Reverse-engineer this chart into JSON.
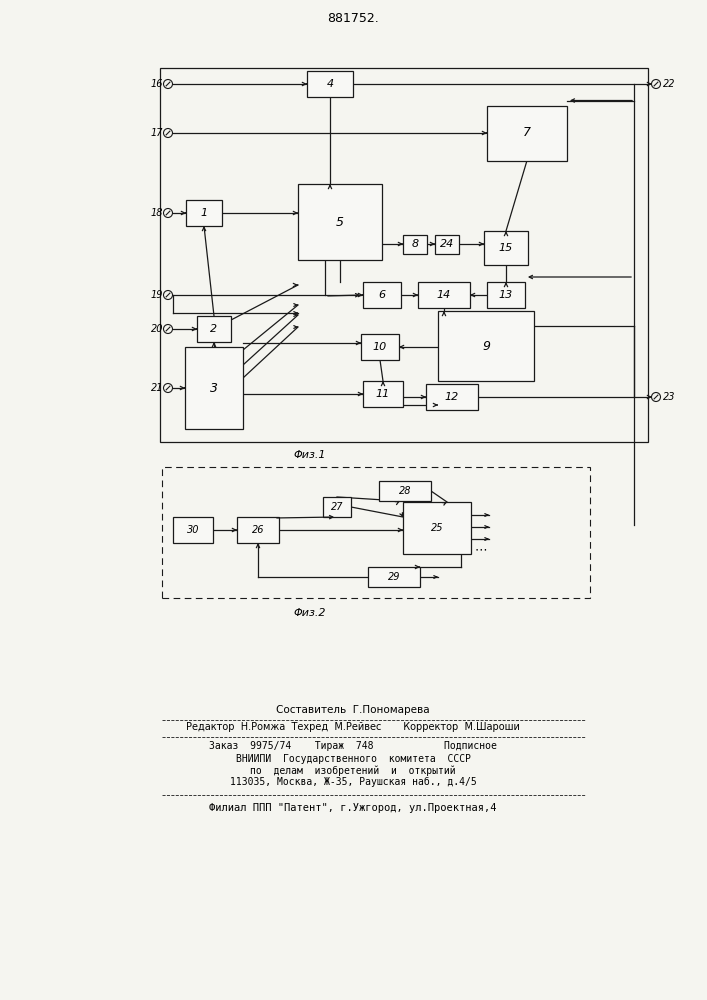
{
  "title": "881752.",
  "fig1_caption": "Φиз.1",
  "fig2_caption": "Φиз.2",
  "lc": "#1a1a1a",
  "bg": "#f5f5f0",
  "footer": [
    "Составитель  Г.Пономарева",
    "Редактор  Н.Ромжа  Техред  М.Рейвес       Корректор  М.Шароши",
    "Заказ  9975/74    Тираж  748            Подписное",
    "ВНИИПИ  Государственного  комитета  СССР",
    "по  делам  изобретений  и  открытий",
    "113035, Москва, Ж-35, Раушская наб., д.4/5",
    "Филиал ППП \"Патент\", г.Ужгород, ул.Проектная,4"
  ]
}
